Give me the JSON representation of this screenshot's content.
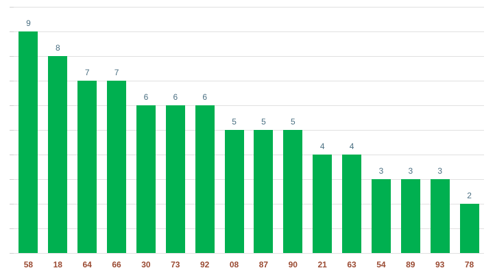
{
  "chart_data": {
    "type": "bar",
    "categories": [
      "58",
      "18",
      "64",
      "66",
      "30",
      "73",
      "92",
      "08",
      "87",
      "90",
      "21",
      "63",
      "54",
      "89",
      "93",
      "78"
    ],
    "values": [
      9,
      8,
      7,
      7,
      6,
      6,
      6,
      5,
      5,
      5,
      4,
      4,
      3,
      3,
      3,
      2
    ],
    "ylim": [
      0,
      10
    ],
    "grid": true,
    "colors": {
      "bar": "#00b050",
      "value_label": "#4a6f82",
      "category_label": "#9a4a32",
      "grid": "#e0e0e0"
    }
  }
}
